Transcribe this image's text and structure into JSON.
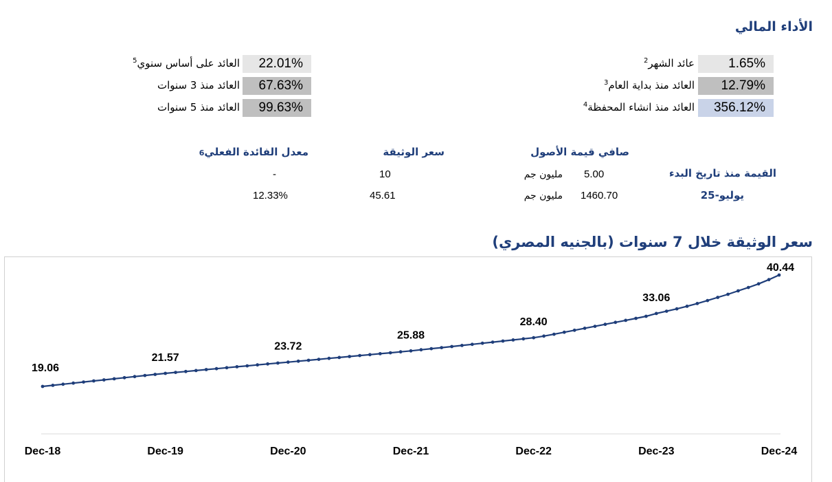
{
  "performance": {
    "title": "الأداء المالي",
    "left_metrics": [
      {
        "label": "العائد على أساس سنوي",
        "sup": "5",
        "value": "22.01%",
        "bg": "#e6e6e6"
      },
      {
        "label": "العائد منذ 3 سنوات",
        "sup": "",
        "value": "67.63%",
        "bg": "#bfbfbf"
      },
      {
        "label": "العائد منذ 5 سنوات",
        "sup": "",
        "value": "99.63%",
        "bg": "#bfbfbf"
      }
    ],
    "right_metrics": [
      {
        "label": "عائد الشهر",
        "sup": "2",
        "value": "1.65%",
        "bg": "#e6e6e6"
      },
      {
        "label": "العائد منذ بداية العام",
        "sup": "3",
        "value": "12.79%",
        "bg": "#bfbfbf"
      },
      {
        "label": "العائد منذ انشاء المحفظة",
        "sup": "4",
        "value": "356.12%",
        "bg": "#c9d3e8"
      }
    ]
  },
  "value_table": {
    "headers": {
      "effective_rate": "معدل الفائدة الفعلي",
      "effective_rate_sup": "6",
      "unit_price": "سعر الوثيقة",
      "net_assets": "صافي قيمة الأصول",
      "inception_label": "القيمة منذ تاريخ البدء"
    },
    "row1": {
      "effective_rate": "-",
      "unit_price": "10",
      "net_assets": "5.00",
      "unit": "مليون جم"
    },
    "row2": {
      "period": "يوليو-25",
      "effective_rate": "12.33%",
      "unit_price": "45.61",
      "net_assets": "1460.70",
      "unit": "مليون جم"
    }
  },
  "chart_title": "سعر الوثيقة خلال 7 سنوات (بالجنيه المصري)",
  "colors": {
    "accent": "#1f3e7a",
    "line": "#1f3e7a"
  },
  "chart_data": {
    "type": "line",
    "title": "سعر الوثيقة خلال 7 سنوات (بالجنيه المصري)",
    "xlabel": "",
    "ylabel": "",
    "x_ticks": [
      "Dec-18",
      "Dec-19",
      "Dec-20",
      "Dec-21",
      "Dec-22",
      "Dec-23",
      "Dec-24"
    ],
    "ylim": [
      0,
      45
    ],
    "grid": false,
    "legend": "none",
    "series": [
      {
        "values": [
          19.06,
          19.27,
          19.48,
          19.69,
          19.9,
          20.11,
          20.32,
          20.53,
          20.74,
          20.95,
          21.16,
          21.37,
          21.57,
          21.75,
          21.93,
          22.11,
          22.29,
          22.47,
          22.65,
          22.83,
          23.01,
          23.19,
          23.37,
          23.55,
          23.72,
          23.9,
          24.08,
          24.26,
          24.44,
          24.62,
          24.8,
          24.98,
          25.16,
          25.34,
          25.52,
          25.7,
          25.88,
          26.09,
          26.3,
          26.51,
          26.72,
          26.93,
          27.14,
          27.35,
          27.56,
          27.77,
          27.98,
          28.19,
          28.4,
          28.72,
          29.08,
          29.46,
          29.84,
          30.22,
          30.6,
          30.98,
          31.36,
          31.74,
          32.12,
          32.52,
          33.06,
          33.5,
          33.95,
          34.45,
          34.98,
          35.55,
          36.15,
          36.75,
          37.4,
          38.05,
          38.75,
          39.55,
          40.44
        ],
        "labels": [
          {
            "index": 0,
            "text": "19.06"
          },
          {
            "index": 12,
            "text": "21.57"
          },
          {
            "index": 24,
            "text": "23.72"
          },
          {
            "index": 36,
            "text": "25.88"
          },
          {
            "index": 48,
            "text": "28.40"
          },
          {
            "index": 60,
            "text": "33.06"
          },
          {
            "index": 72,
            "text": "40.44"
          }
        ]
      }
    ]
  }
}
